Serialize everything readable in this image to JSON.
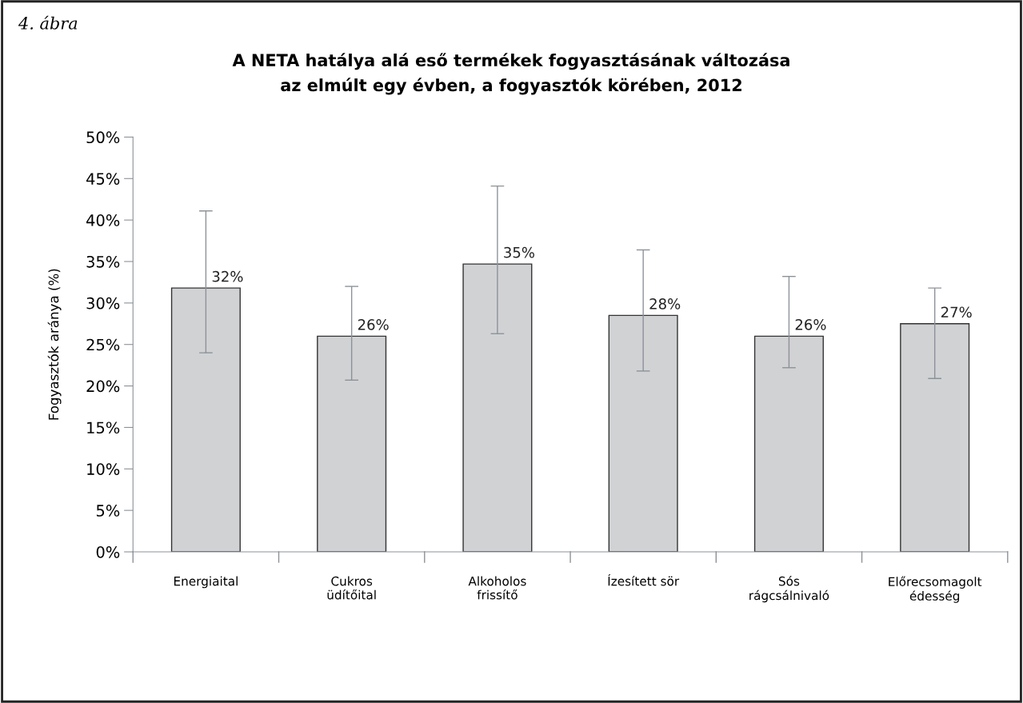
{
  "chart_data": {
    "type": "bar",
    "title": "A NETA hatálya alá eső termékek fogyasztásának változása\naz elmúlt egy évben, a fogyasztók körében, 2012",
    "ylabel": "Fogyasztók aránya (%)",
    "annotations": [
      "4. ábra"
    ],
    "categories": [
      "Energiaital",
      "Cukros\nüdítőital",
      "Alkoholos\nfrissítő",
      "Ízesített sör",
      "Sós\nrágcsálnivaló",
      "Előrecsomagolt\nédesség"
    ],
    "values": [
      31.8,
      26,
      34.7,
      28.5,
      26,
      27.5
    ],
    "errors": [
      [
        24,
        41.1
      ],
      [
        20.7,
        32
      ],
      [
        26.3,
        44.1
      ],
      [
        21.8,
        36.4
      ],
      [
        22.2,
        33.2
      ],
      [
        20.9,
        31.8
      ]
    ],
    "value_labels": [
      "32%",
      "26%",
      "35%",
      "28%",
      "26%",
      "27%"
    ],
    "color": "#d1d2d4",
    "ylim": [
      0,
      50
    ],
    "yticks": [
      {
        "value": 0,
        "label": "0%"
      },
      {
        "value": 5,
        "label": "5%"
      },
      {
        "value": 10,
        "label": "10%"
      },
      {
        "value": 15,
        "label": "15%"
      },
      {
        "value": 20,
        "label": "20%"
      },
      {
        "value": 25,
        "label": "25%"
      },
      {
        "value": 30,
        "label": "30%"
      },
      {
        "value": 35,
        "label": "35%"
      },
      {
        "value": 40,
        "label": "40%"
      },
      {
        "value": 45,
        "label": "45%"
      },
      {
        "value": 50,
        "label": "50%"
      }
    ],
    "grid": false,
    "legend": false
  }
}
